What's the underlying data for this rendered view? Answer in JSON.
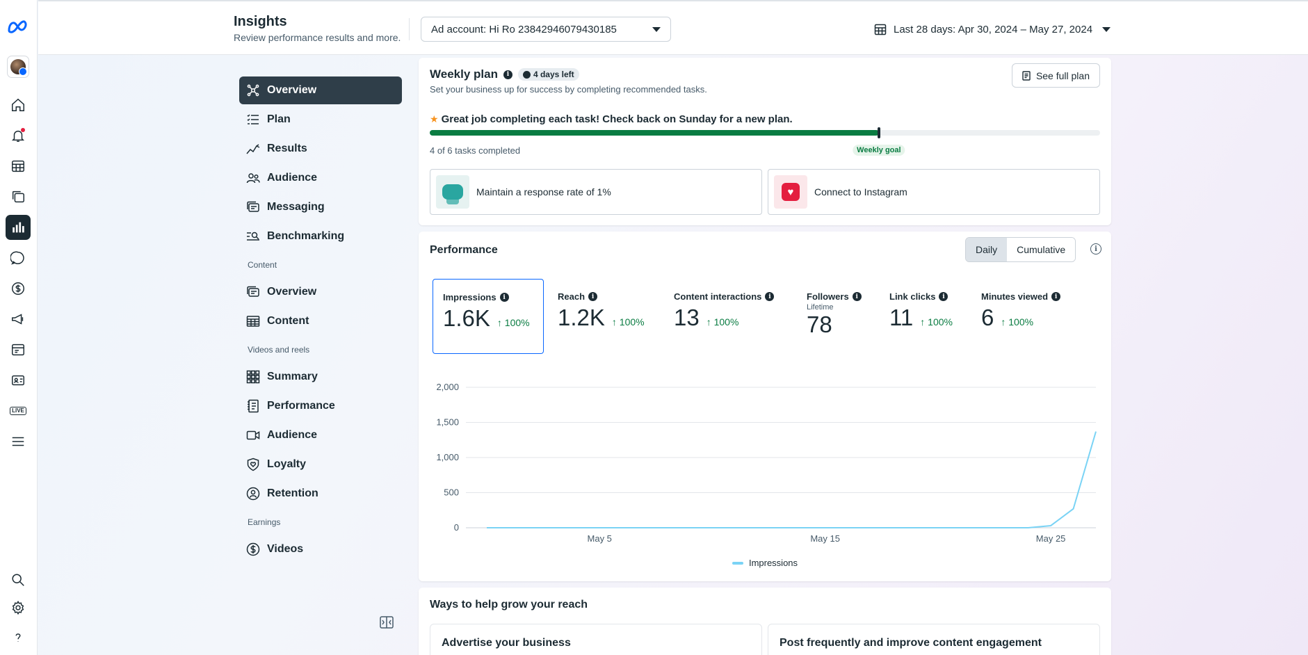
{
  "header": {
    "title": "Insights",
    "subtitle": "Review performance results and more.",
    "ad_account": "Ad account: Hi Ro 23842946079430185",
    "date_range": "Last 28 days: Apr 30, 2024 – May 27, 2024"
  },
  "nav": {
    "items": [
      {
        "label": "Overview",
        "icon": "hub-icon"
      },
      {
        "label": "Plan",
        "icon": "checklist-icon"
      },
      {
        "label": "Results",
        "icon": "trend-icon"
      },
      {
        "label": "Audience",
        "icon": "people-icon"
      },
      {
        "label": "Messaging",
        "icon": "messaging-icon"
      },
      {
        "label": "Benchmarking",
        "icon": "benchmark-icon"
      }
    ],
    "content_section": "Content",
    "content_items": [
      {
        "label": "Overview",
        "icon": "content-overview-icon"
      },
      {
        "label": "Content",
        "icon": "table-icon"
      }
    ],
    "videos_section": "Videos and reels",
    "video_items": [
      {
        "label": "Summary",
        "icon": "grid-icon"
      },
      {
        "label": "Performance",
        "icon": "notebook-icon"
      },
      {
        "label": "Audience",
        "icon": "video-camera-icon"
      },
      {
        "label": "Loyalty",
        "icon": "shield-heart-icon"
      },
      {
        "label": "Retention",
        "icon": "person-loop-icon"
      }
    ],
    "earnings_section": "Earnings",
    "earning_items": [
      {
        "label": "Videos",
        "icon": "dollar-icon"
      }
    ]
  },
  "weekly_plan": {
    "title": "Weekly plan",
    "days_left": "4 days left",
    "subtitle": "Set your business up for success by completing recommended tasks.",
    "see_full_plan": "See full plan",
    "message": "Great job completing each task! Check back on Sunday for a new plan.",
    "tasks_completed": "4 of 6 tasks completed",
    "progress": 0.67,
    "goal_label": "Weekly goal",
    "tasks": [
      {
        "label": "Maintain a response rate of 1%"
      },
      {
        "label": "Connect to Instagram"
      }
    ]
  },
  "performance": {
    "title": "Performance",
    "toggle": [
      "Daily",
      "Cumulative"
    ],
    "metrics": [
      {
        "label": "Impressions",
        "value": "1.6K",
        "change": "↑ 100%",
        "sub": ""
      },
      {
        "label": "Reach",
        "value": "1.2K",
        "change": "↑ 100%",
        "sub": ""
      },
      {
        "label": "Content interactions",
        "value": "13",
        "change": "↑ 100%",
        "sub": ""
      },
      {
        "label": "Followers",
        "value": "78",
        "change": "",
        "sub": "Lifetime"
      },
      {
        "label": "Link clicks",
        "value": "11",
        "change": "↑ 100%",
        "sub": ""
      },
      {
        "label": "Minutes viewed",
        "value": "6",
        "change": "↑ 100%",
        "sub": ""
      }
    ],
    "legend": "Impressions"
  },
  "chart_data": {
    "type": "line",
    "title": "",
    "xlabel": "",
    "ylabel": "",
    "ylim": [
      0,
      2000
    ],
    "yticks": [
      "2,000",
      "1,500",
      "1,000",
      "500",
      "0"
    ],
    "xticks": [
      "May 5",
      "May 15",
      "May 25"
    ],
    "x": [
      "Apr 30",
      "May 1",
      "May 2",
      "May 3",
      "May 4",
      "May 5",
      "May 6",
      "May 7",
      "May 8",
      "May 9",
      "May 10",
      "May 11",
      "May 12",
      "May 13",
      "May 14",
      "May 15",
      "May 16",
      "May 17",
      "May 18",
      "May 19",
      "May 20",
      "May 21",
      "May 22",
      "May 23",
      "May 24",
      "May 25",
      "May 26",
      "May 27"
    ],
    "series": [
      {
        "name": "Impressions",
        "color": "#7ad3f5",
        "values": [
          0,
          0,
          0,
          0,
          0,
          0,
          0,
          0,
          0,
          0,
          0,
          0,
          0,
          0,
          0,
          0,
          0,
          0,
          0,
          0,
          0,
          0,
          0,
          0,
          0,
          30,
          270,
          1370
        ]
      }
    ],
    "grid": true,
    "legend_position": "bottom-center"
  },
  "ways": {
    "title": "Ways to help grow your reach",
    "cards": [
      "Advertise your business",
      "Post frequently and improve content engagement"
    ]
  }
}
